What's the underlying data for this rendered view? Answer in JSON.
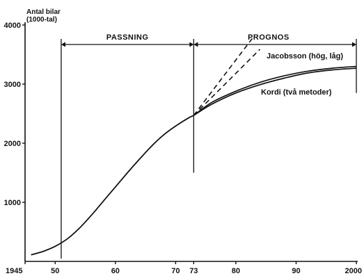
{
  "chart_data": {
    "type": "line",
    "title": "",
    "ylabel_lines": [
      "Antal bilar",
      "(1000-tal)"
    ],
    "xlabel": "",
    "xlim": [
      1945,
      2000
    ],
    "ylim": [
      0,
      4000
    ],
    "x_ticks": [
      {
        "value": 1945,
        "label": "1945"
      },
      {
        "value": 1950,
        "label": "50"
      },
      {
        "value": 1960,
        "label": "60"
      },
      {
        "value": 1970,
        "label": "70"
      },
      {
        "value": 1973,
        "label": "73"
      },
      {
        "value": 1980,
        "label": "80"
      },
      {
        "value": 1990,
        "label": "90"
      },
      {
        "value": 2000,
        "label": "2000"
      }
    ],
    "y_ticks": [
      {
        "value": 1000,
        "label": "1000"
      },
      {
        "value": 2000,
        "label": "2000"
      },
      {
        "value": 3000,
        "label": "3000"
      },
      {
        "value": 4000,
        "label": "4000"
      }
    ],
    "periods": [
      {
        "label": "PASSNING",
        "x_from": 1951,
        "x_to": 1973
      },
      {
        "label": "PROGNOS",
        "x_from": 1973,
        "x_to": 2000
      }
    ],
    "series": [
      {
        "name": "historical",
        "style": "solid",
        "x": [
          1946,
          1948,
          1950,
          1952,
          1954,
          1956,
          1958,
          1960,
          1962,
          1964,
          1966,
          1968,
          1970,
          1972,
          1973
        ],
        "y": [
          110,
          170,
          255,
          380,
          560,
          780,
          1020,
          1260,
          1500,
          1730,
          1950,
          2140,
          2290,
          2420,
          2470
        ]
      },
      {
        "name": "Jacobsson (hög, låg)",
        "style": "dashed",
        "lines": [
          {
            "x": [
              1973,
              1983
            ],
            "y": [
              2470,
              3810
            ]
          },
          {
            "x": [
              1973,
              1984
            ],
            "y": [
              2470,
              3590
            ]
          }
        ]
      },
      {
        "name": "Kordi (två metoder)",
        "style": "solid",
        "lines": [
          {
            "x": [
              1973,
              1976,
              1980,
              1984,
              1988,
              1992,
              1996,
              2000
            ],
            "y": [
              2470,
              2690,
              2880,
              3030,
              3140,
              3220,
              3270,
              3300
            ]
          },
          {
            "x": [
              1973,
              1976,
              1980,
              1984,
              1988,
              1992,
              1996,
              2000
            ],
            "y": [
              2470,
              2660,
              2850,
              2990,
              3100,
              3190,
              3240,
              3270
            ]
          }
        ]
      }
    ],
    "annotations": [
      {
        "text": "Jacobsson (hög, låg)"
      },
      {
        "text": "Kordi (två metoder)"
      }
    ],
    "grid": false,
    "legend": "none"
  }
}
